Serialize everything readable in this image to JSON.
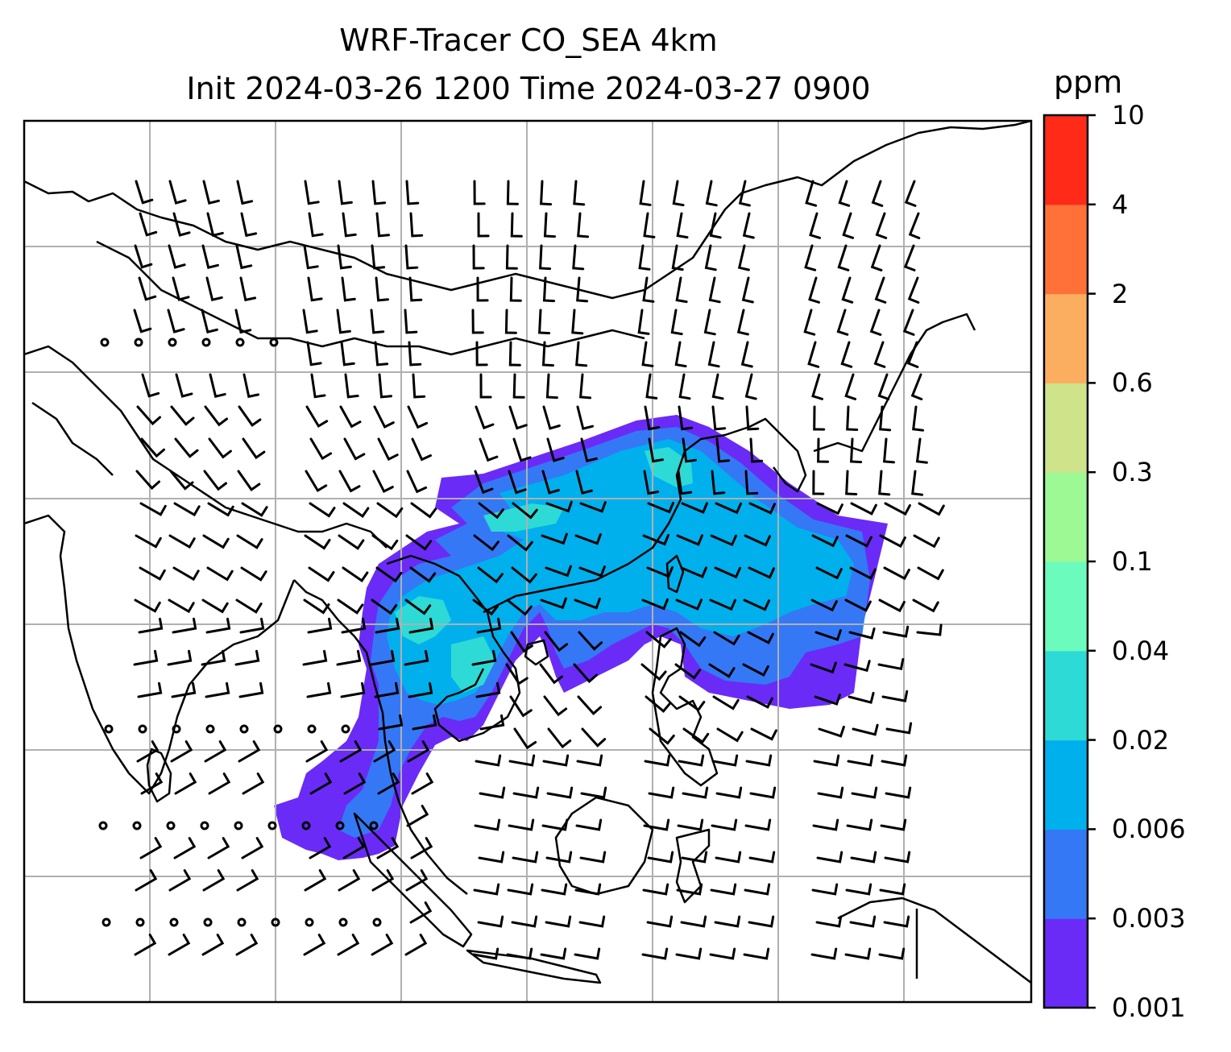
{
  "title": {
    "line1": "WRF-Tracer CO_SEA 4km",
    "line2": "Init 2024-03-26 1200 Time 2024-03-27 0900"
  },
  "colorbar": {
    "unit": "ppm",
    "levels": [
      "0.001",
      "0.003",
      "0.006",
      "0.02",
      "0.04",
      "0.1",
      "0.3",
      "0.6",
      "2",
      "4",
      "10"
    ],
    "colors": [
      "#6a2bf7",
      "#3478f6",
      "#00b0ec",
      "#2edad5",
      "#6bfbbd",
      "#9df994",
      "#cfe38a",
      "#fcae60",
      "#ff7139",
      "#ff2a17"
    ]
  },
  "map": {
    "gridlines": "on",
    "overlay": "wind barbs",
    "field": "CO tracer concentration"
  }
}
